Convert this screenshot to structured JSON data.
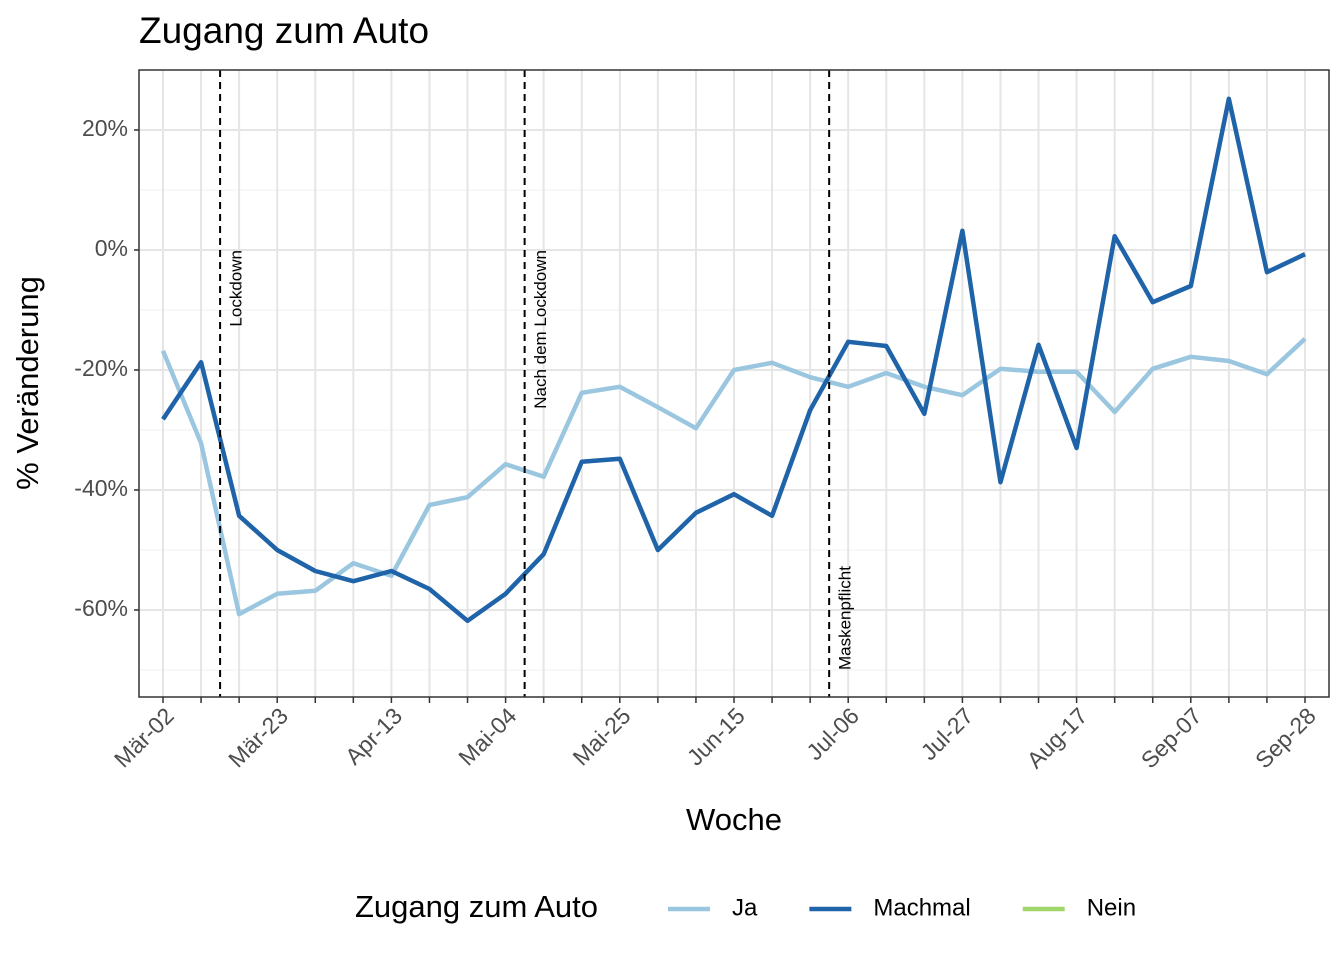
{
  "chart_data": {
    "type": "line",
    "title": "Zugang zum Auto",
    "x_label": "Woche",
    "y_label": "% Veränderung",
    "legend_title": "Zugang zum Auto",
    "legend_position": "bottom",
    "grid": true,
    "categories": [
      "Mär-02",
      null,
      null,
      "Mär-23",
      null,
      null,
      "Apr-13",
      null,
      null,
      "Mai-04",
      null,
      null,
      "Mai-25",
      null,
      null,
      "Jun-15",
      null,
      null,
      "Jul-06",
      null,
      null,
      "Jul-27",
      null,
      null,
      "Aug-17",
      null,
      null,
      "Sep-07",
      null,
      null,
      "Sep-28"
    ],
    "ylim": [
      -74.5,
      30
    ],
    "yticks": [
      {
        "value": 20,
        "label": "20%"
      },
      {
        "value": 0,
        "label": "0%"
      },
      {
        "value": -20,
        "label": "-20%"
      },
      {
        "value": -40,
        "label": "-40%"
      },
      {
        "value": -60,
        "label": "-60%"
      }
    ],
    "yminor": [
      10,
      -10,
      -30,
      -50,
      -70
    ],
    "series": [
      {
        "name": "Ja",
        "color": "#9ac6df",
        "values": [
          -16.8,
          -32.2,
          -60.7,
          -57.3,
          -56.8,
          -52.2,
          -54.3,
          -42.5,
          -41.2,
          -35.7,
          -37.8,
          -23.8,
          -22.8,
          -26.2,
          -29.7,
          -20,
          -18.8,
          -21.2,
          -22.8,
          -20.5,
          -22.8,
          -24.2,
          -19.8,
          -20.3,
          -20.3,
          -27,
          -19.8,
          -17.8,
          -18.5,
          -20.7,
          -14.8
        ]
      },
      {
        "name": "Machmal",
        "color": "#1f63a8",
        "values": [
          -28.2,
          -18.7,
          -44.3,
          -50,
          -53.5,
          -55.2,
          -53.5,
          -56.5,
          -61.8,
          -57.3,
          -50.7,
          -35.3,
          -34.8,
          -50,
          -43.8,
          -40.7,
          -44.3,
          -26.7,
          -15.3,
          -16,
          -27.3,
          3.2,
          -38.7,
          -15.8,
          -33,
          2.3,
          -8.7,
          -6,
          25.2,
          -3.7,
          -0.7
        ]
      },
      {
        "name": "Nein",
        "color": "#a1d76a",
        "values": [
          null,
          null,
          null,
          null,
          null,
          null,
          null,
          null,
          null,
          null,
          null,
          null,
          null,
          null,
          null,
          null,
          null,
          null,
          null,
          null,
          null,
          null,
          null,
          null,
          null,
          null,
          null,
          null,
          null,
          null,
          null
        ]
      }
    ],
    "annotations": [
      {
        "text": "Lockdown",
        "x": 1.5,
        "y": 0,
        "hjust": 1
      },
      {
        "text": "Nach dem Lockdown",
        "x": 9.5,
        "y": 0,
        "hjust": 1
      },
      {
        "text": "Maskenpflicht",
        "x": 17.5,
        "y": -70,
        "hjust": 0
      }
    ]
  }
}
